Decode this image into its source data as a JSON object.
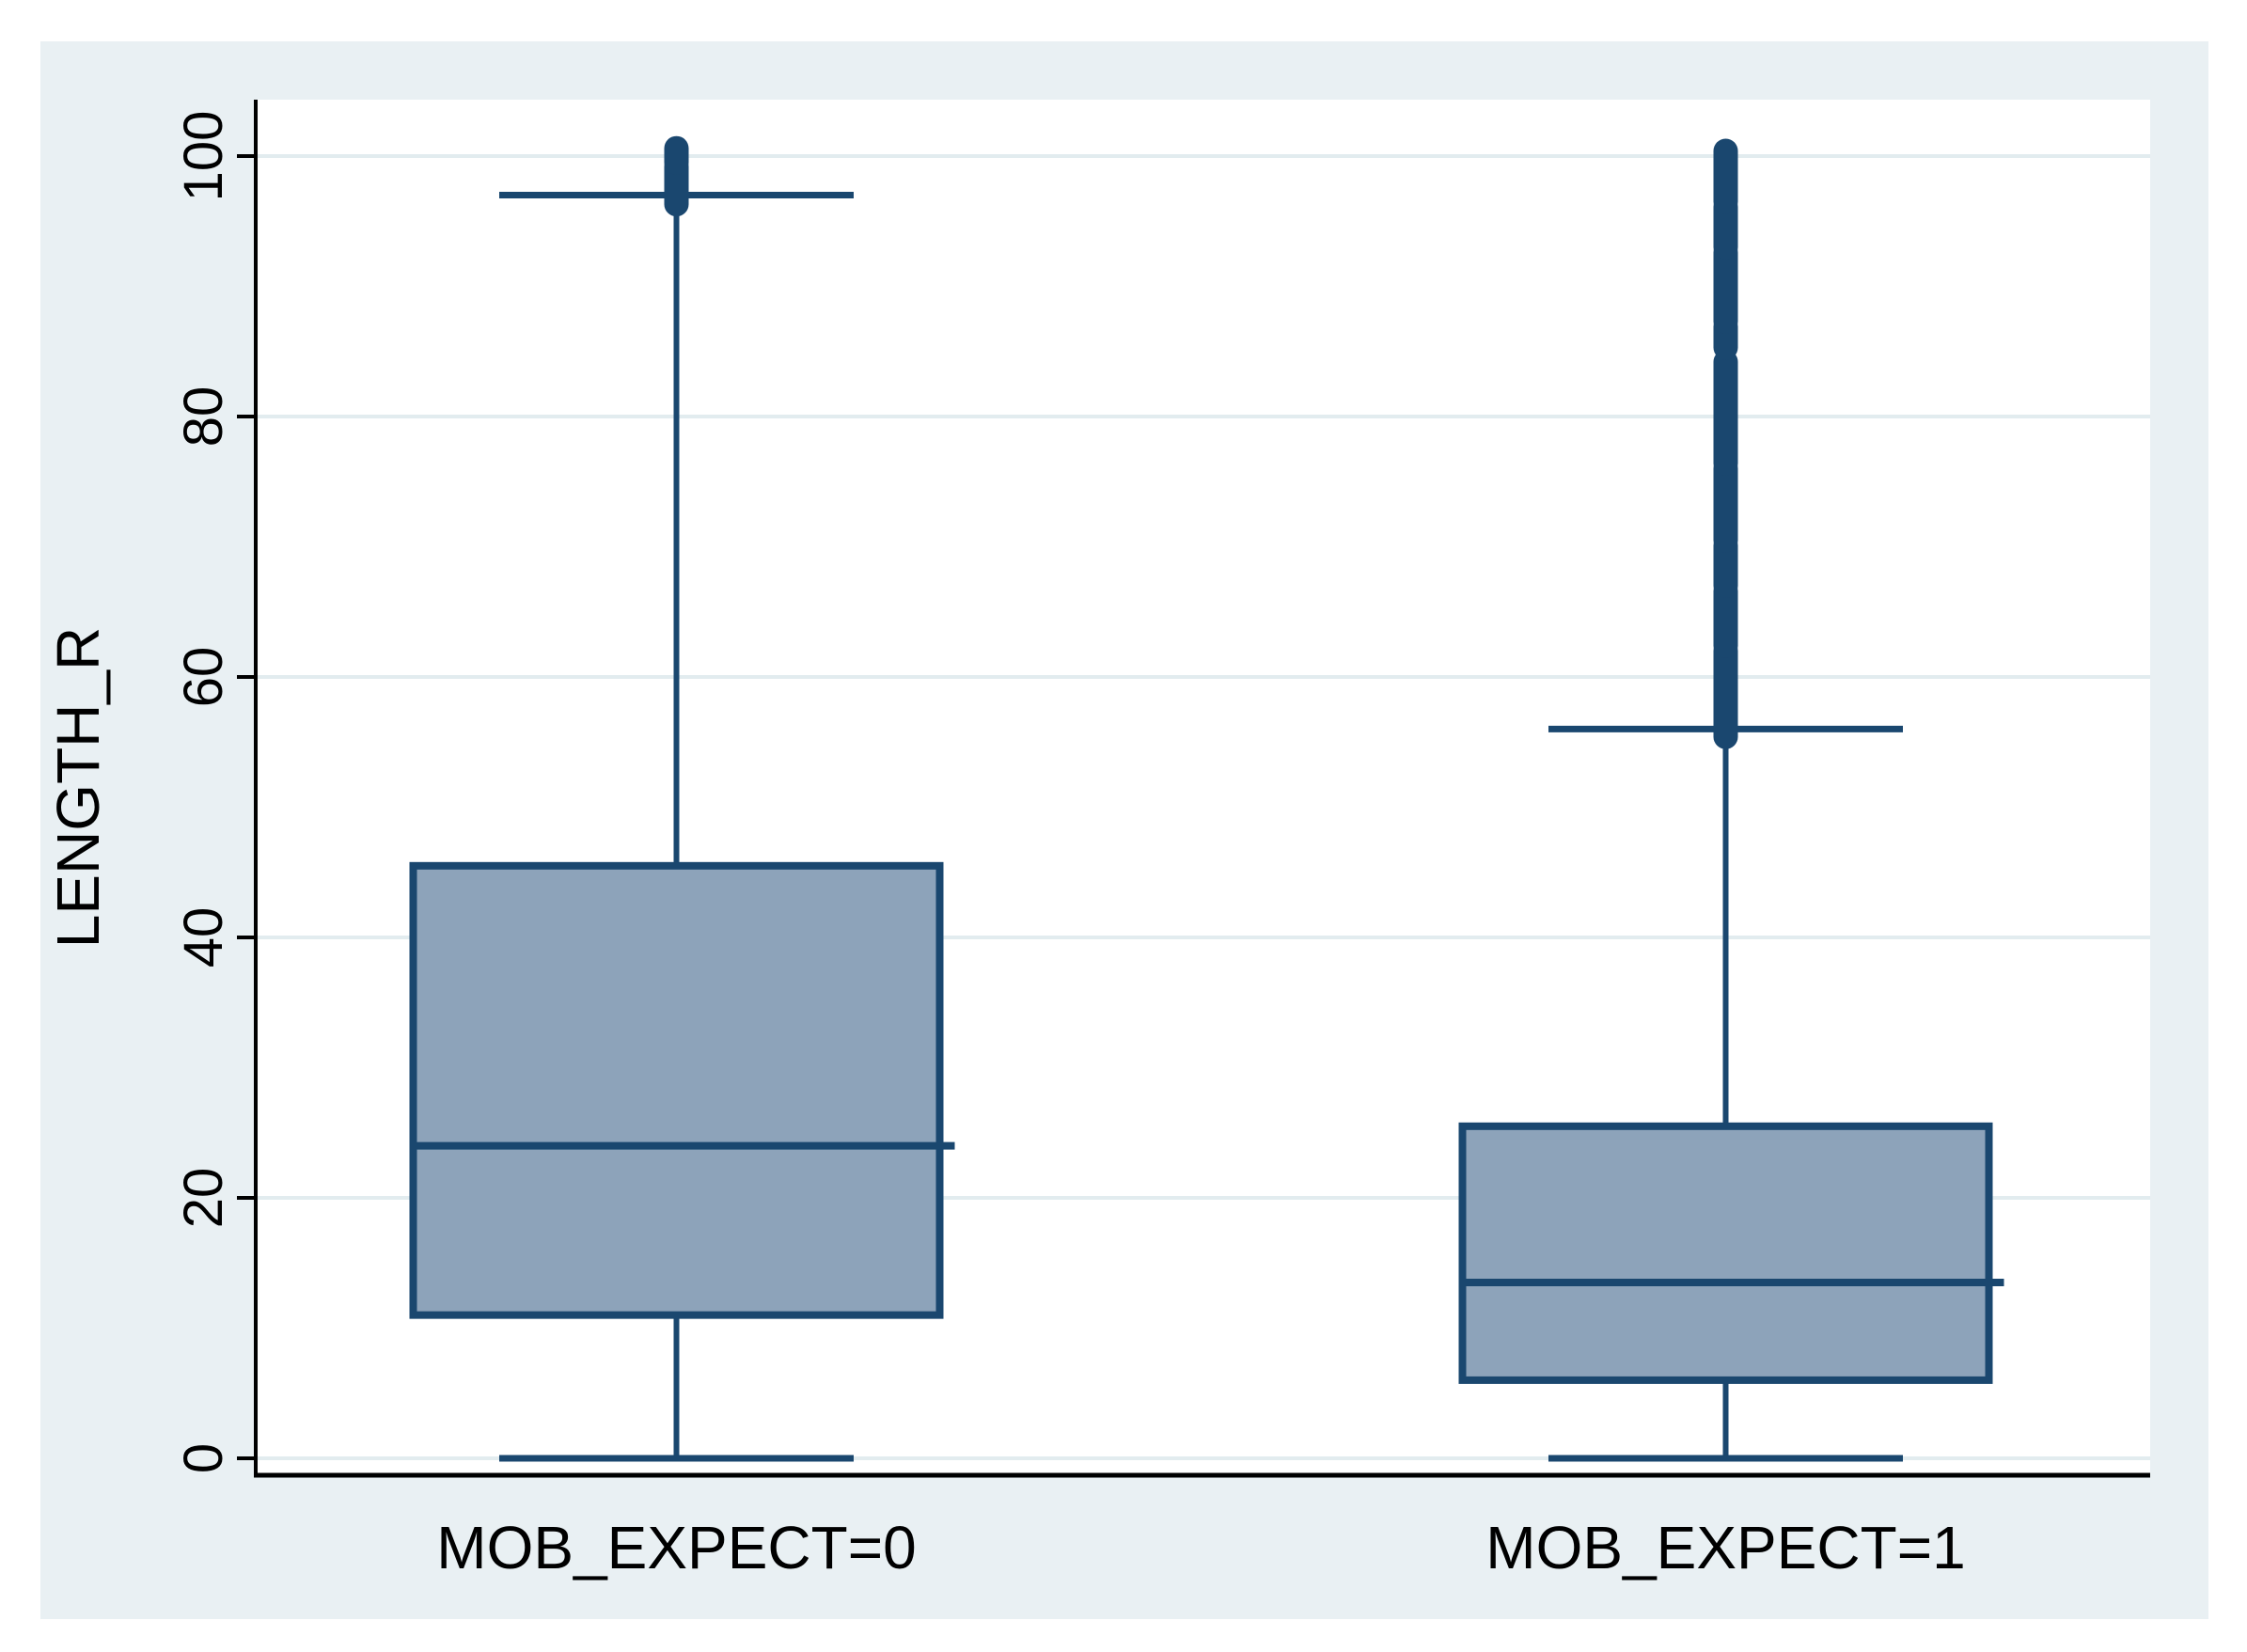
{
  "figure": {
    "description": "Stata-style vertical box plot comparing LENGTH_R across two groups",
    "y_axis": {
      "title": "LENGTH_R"
    },
    "x_axis": {
      "labels": [
        "MOB_EXPECT=0",
        "MOB_EXPECT=1"
      ]
    }
  },
  "colors": {
    "page_bg": "#ffffff",
    "canvas_bg": "#e9f0f3",
    "plot_bg": "#ffffff",
    "grid": "#e2ecef",
    "axis": "#000000",
    "text": "#000000",
    "box_fill": "#8da3ba",
    "box_line": "#1a476f"
  },
  "chart_data": {
    "type": "boxplot",
    "title": "",
    "xlabel": "",
    "ylabel": "LENGTH_R",
    "y_ticks": [
      0,
      20,
      40,
      60,
      80,
      100
    ],
    "ylim": [
      -1.5,
      104.5
    ],
    "grid": true,
    "categories": [
      "MOB_EXPECT=0",
      "MOB_EXPECT=1"
    ],
    "groups": [
      {
        "label": "MOB_EXPECT=0",
        "q1": 11,
        "median": 24,
        "q3": 45.5,
        "whisker_low": 0,
        "whisker_high": 97,
        "outlier_segments": [
          [
            96.3,
            99.2
          ],
          [
            99.5,
            100.6
          ]
        ]
      },
      {
        "label": "MOB_EXPECT=1",
        "q1": 6,
        "median": 13.5,
        "q3": 25.5,
        "whisker_low": 0,
        "whisker_high": 56,
        "outlier_segments": [
          [
            55.4,
            62.0
          ],
          [
            62.4,
            66.6
          ],
          [
            67.0,
            70.1
          ],
          [
            70.5,
            76.0
          ],
          [
            76.4,
            84.2
          ],
          [
            85.3,
            86.9
          ],
          [
            87.3,
            92.6
          ],
          [
            93.0,
            96.1
          ],
          [
            96.5,
            100.4
          ]
        ]
      }
    ]
  }
}
